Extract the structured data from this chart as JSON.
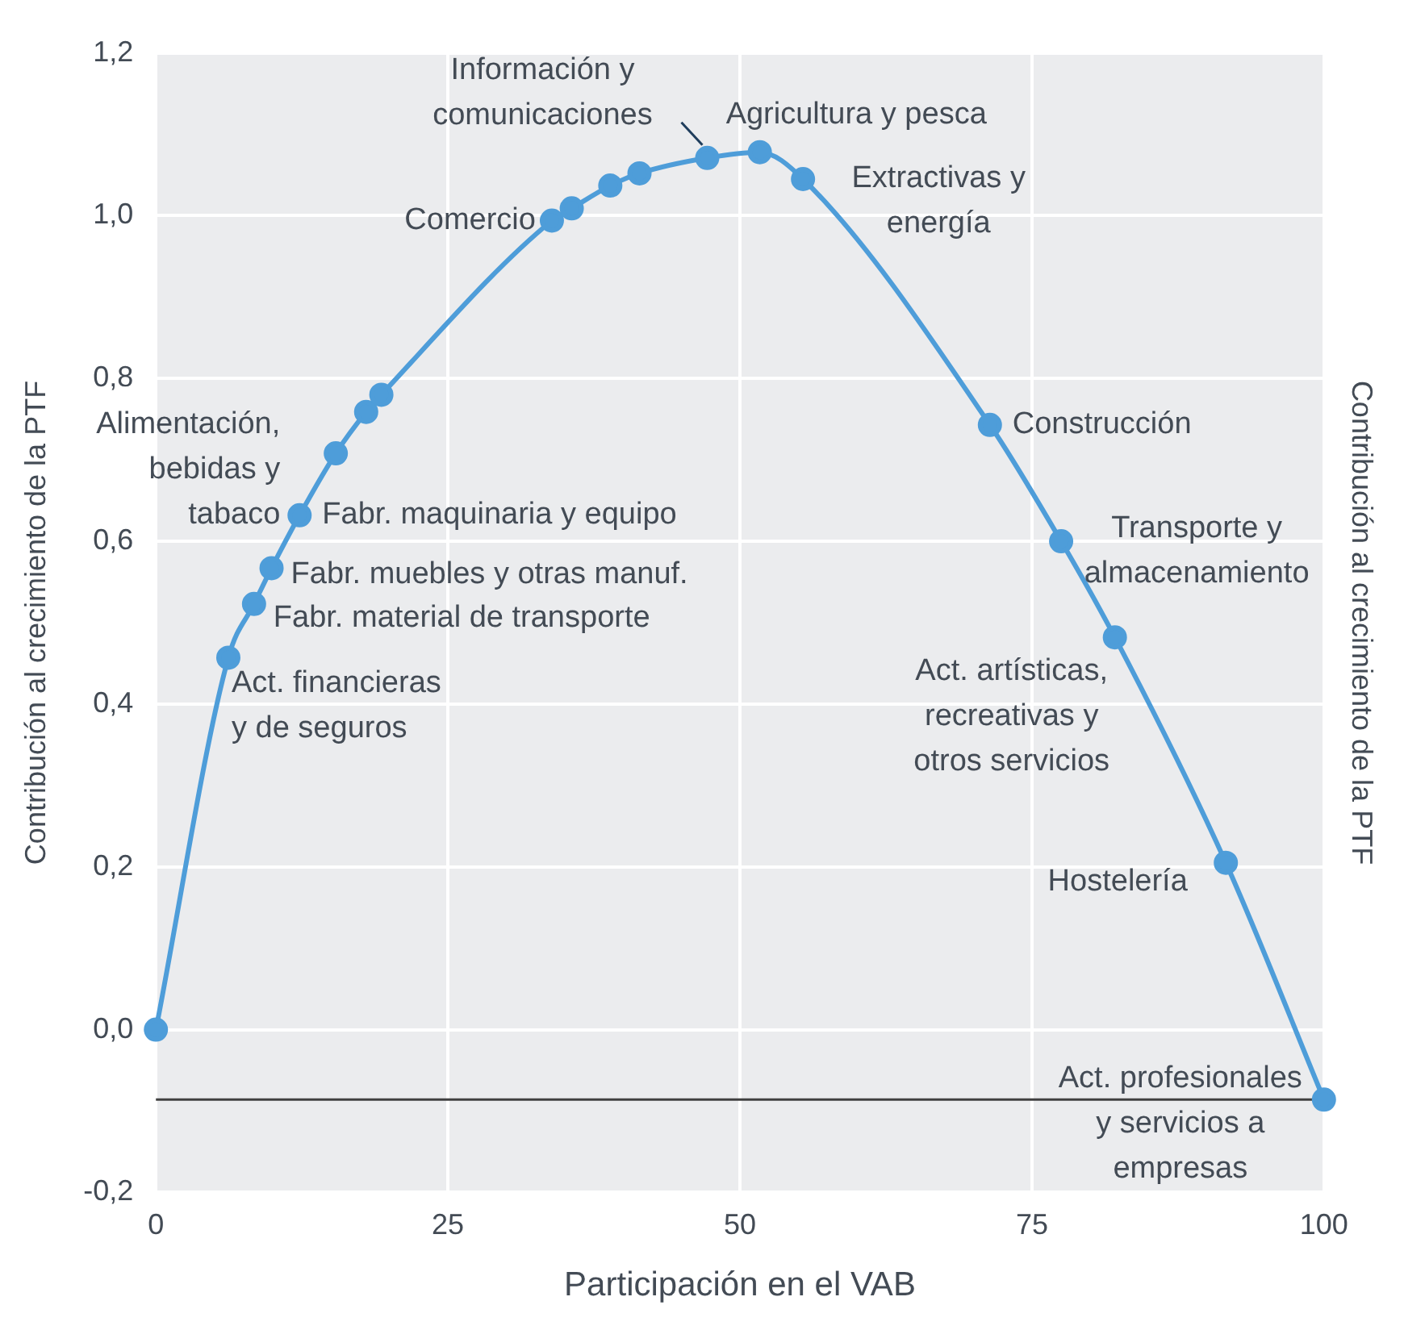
{
  "chart_data": {
    "type": "line",
    "xlabel": "Participación en el VAB",
    "ylabel": "Contribución al crecimiento de la PTF",
    "y2label": "Contribución al crecimiento de la PTF",
    "x": [
      0,
      6.2,
      8.4,
      9.9,
      12.3,
      15.4,
      18.0,
      19.3,
      33.9,
      35.6,
      38.9,
      41.4,
      47.2,
      51.7,
      55.4,
      71.4,
      77.5,
      82.1,
      91.6,
      100
    ],
    "series": [
      {
        "color": "#4e9dd9",
        "values": [
          0,
          0.457,
          0.523,
          0.567,
          0.632,
          0.708,
          0.759,
          0.78,
          0.994,
          1.009,
          1.037,
          1.052,
          1.071,
          1.078,
          1.045,
          0.743,
          0.6,
          0.482,
          0.205,
          -0.086
        ]
      }
    ],
    "xlim": [
      0,
      100
    ],
    "xticks": [
      0,
      25,
      50,
      75,
      100
    ],
    "ylim": [
      -0.2,
      1.2
    ],
    "yticks": [
      {
        "value": -0.2,
        "label": "-0,2"
      },
      {
        "value": 0,
        "label": "0,0"
      },
      {
        "value": 0.2,
        "label": "0,2"
      },
      {
        "value": 0.4,
        "label": "0,4"
      },
      {
        "value": 0.6,
        "label": "0,6"
      },
      {
        "value": 0.8,
        "label": "0,8"
      },
      {
        "value": 1.0,
        "label": "1,0"
      },
      {
        "value": 1.2,
        "label": "1,2"
      }
    ],
    "grid": true,
    "legend": false,
    "marker": "circle",
    "line_style": "solid",
    "ref_lines": [
      {
        "axis": "y",
        "value": -0.086,
        "color": "#404040"
      }
    ],
    "annotations": [
      {
        "text": "Act. financieras\ny de seguros",
        "x": 6.2,
        "y": 0.457
      },
      {
        "text": "Fabr. material de transporte",
        "x": 8.4,
        "y": 0.523
      },
      {
        "text": "Fabr. muebles y otras manuf.",
        "x": 9.9,
        "y": 0.567
      },
      {
        "text": "Alimentación,\nbebidas y\ntabaco",
        "x": 12.3,
        "y": 0.632
      },
      {
        "text": "Fabr. maquinaria y equipo",
        "x": 12.3,
        "y": 0.632
      },
      {
        "text": "Comercio",
        "x": 33.9,
        "y": 0.994
      },
      {
        "text": "Información y\ncomunicaciones",
        "x": 47.2,
        "y": 1.071
      },
      {
        "text": "Agricultura y pesca",
        "x": 51.7,
        "y": 1.078
      },
      {
        "text": "Extractivas y\nenergía",
        "x": 55.4,
        "y": 1.045
      },
      {
        "text": "Construcción",
        "x": 71.4,
        "y": 0.743
      },
      {
        "text": "Transporte y\nalmacenamiento",
        "x": 77.5,
        "y": 0.6
      },
      {
        "text": "Act. artísticas,\nrecreativas y\notros servicios",
        "x": 82.1,
        "y": 0.482
      },
      {
        "text": "Hostelería",
        "x": 91.6,
        "y": 0.205
      },
      {
        "text": "Act. profesionales\ny servicios a\nempresas",
        "x": 100,
        "y": -0.086
      }
    ]
  }
}
